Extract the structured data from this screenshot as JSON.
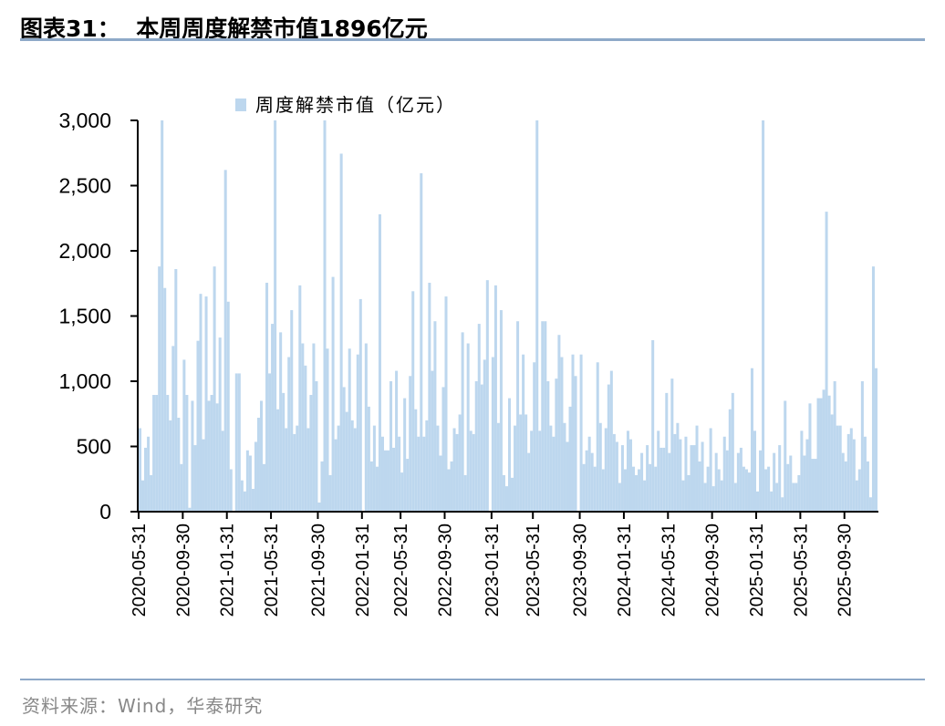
{
  "header": {
    "title": "图表31：  本周周度解禁市值1896亿元"
  },
  "footer": {
    "source": "资料来源：Wind，华泰研究"
  },
  "chart_data": {
    "type": "bar",
    "title": "本周周度解禁市值1896亿元",
    "xlabel": "",
    "ylabel": "",
    "ylim": [
      0,
      3000
    ],
    "yticks": [
      0,
      500,
      1000,
      1500,
      2000,
      2500,
      3000
    ],
    "ytick_labels": [
      "0",
      "500",
      "1,000",
      "1,500",
      "2,000",
      "2,500",
      "3,000"
    ],
    "grid": false,
    "legend": {
      "position": "top",
      "entries": [
        "周度解禁市值（亿元）"
      ]
    },
    "color": "#BDD7EE",
    "xtick_labels": [
      {
        "label": "2020-05-31",
        "index": 0
      },
      {
        "label": "2020-09-30",
        "index": 16
      },
      {
        "label": "2021-01-31",
        "index": 32
      },
      {
        "label": "2021-05-31",
        "index": 48
      },
      {
        "label": "2021-09-30",
        "index": 65
      },
      {
        "label": "2022-01-31",
        "index": 81
      },
      {
        "label": "2022-05-31",
        "index": 95
      },
      {
        "label": "2022-09-30",
        "index": 111
      },
      {
        "label": "2023-01-31",
        "index": 128
      },
      {
        "label": "2023-05-31",
        "index": 143
      },
      {
        "label": "2023-09-30",
        "index": 160
      },
      {
        "label": "2024-01-31",
        "index": 176
      },
      {
        "label": "2024-05-31",
        "index": 192
      },
      {
        "label": "2024-09-30",
        "index": 208
      },
      {
        "label": "2025-01-31",
        "index": 224
      },
      {
        "label": "2025-05-31",
        "index": 240
      },
      {
        "label": "2025-09-30",
        "index": 256
      }
    ],
    "values": [
      640,
      240,
      490,
      575,
      280,
      895,
      895,
      1880,
      3000,
      1715,
      895,
      700,
      1270,
      1860,
      720,
      365,
      1165,
      895,
      30,
      850,
      510,
      1310,
      1670,
      555,
      1650,
      850,
      895,
      1880,
      830,
      1335,
      620,
      2620,
      1610,
      325,
      0,
      1060,
      1060,
      240,
      155,
      470,
      430,
      175,
      535,
      720,
      850,
      365,
      1755,
      1060,
      1440,
      3000,
      785,
      1375,
      910,
      640,
      1185,
      1545,
      595,
      660,
      1735,
      1290,
      1120,
      640,
      895,
      1290,
      1000,
      70,
      385,
      3000,
      1250,
      280,
      1800,
      555,
      660,
      2745,
      955,
      765,
      1250,
      700,
      640,
      1205,
      1630,
      0,
      1290,
      805,
      385,
      660,
      345,
      2280,
      575,
      470,
      470,
      1000,
      490,
      1080,
      575,
      300,
      870,
      405,
      1040,
      1690,
      785,
      575,
      2595,
      575,
      700,
      1755,
      1080,
      1460,
      660,
      430,
      955,
      1650,
      325,
      385,
      640,
      595,
      745,
      1375,
      280,
      1290,
      620,
      595,
      1000,
      1440,
      975,
      1165,
      1775,
      0,
      1185,
      1735,
      680,
      1545,
      280,
      195,
      870,
      260,
      660,
      1460,
      745,
      1205,
      745,
      450,
      620,
      1145,
      3000,
      620,
      1460,
      1460,
      1000,
      660,
      575,
      1020,
      1355,
      1185,
      680,
      535,
      805,
      1205,
      1040,
      0,
      1205,
      365,
      470,
      575,
      450,
      345,
      1145,
      680,
      325,
      640,
      975,
      1080,
      595,
      535,
      220,
      510,
      325,
      620,
      555,
      345,
      280,
      325,
      450,
      240,
      510,
      365,
      1315,
      345,
      620,
      490,
      490,
      910,
      450,
      1020,
      595,
      680,
      555,
      240,
      575,
      280,
      510,
      510,
      660,
      385,
      535,
      220,
      345,
      640,
      195,
      450,
      325,
      240,
      575,
      470,
      785,
      910,
      220,
      450,
      490,
      345,
      325,
      300,
      1100,
      620,
      155,
      470,
      3000,
      325,
      345,
      155,
      450,
      220,
      510,
      110,
      850,
      365,
      430,
      220,
      220,
      280,
      620,
      430,
      555,
      830,
      405,
      405,
      870,
      870,
      935,
      2300,
      890,
      745,
      1000,
      660,
      660,
      450,
      385,
      595,
      640,
      555,
      240,
      325,
      1000,
      575,
      385,
      110,
      1880,
      1100
    ]
  }
}
